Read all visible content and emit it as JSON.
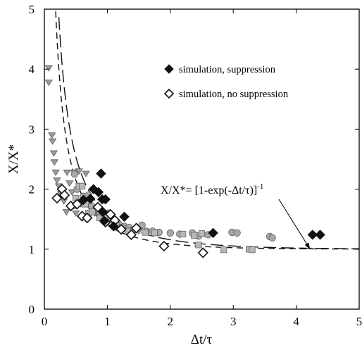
{
  "chart_data": {
    "type": "scatter",
    "title": "",
    "xlabel": "Δt/τ",
    "ylabel": "X/X*",
    "xlim": [
      0,
      5
    ],
    "ylim": [
      0,
      5
    ],
    "xticks": [
      "0",
      "1",
      "2",
      "3",
      "4",
      "5"
    ],
    "yticks": [
      "0",
      "1",
      "2",
      "3",
      "4",
      "5"
    ],
    "grid": false,
    "legend_position": "top-right",
    "series": [
      {
        "name": "simulation, suppression",
        "marker": "diamond-filled",
        "color": "#111111",
        "points": [
          [
            0.9,
            2.26
          ],
          [
            0.86,
            1.95
          ],
          [
            0.62,
            1.82
          ],
          [
            0.73,
            1.84
          ],
          [
            0.78,
            2.0
          ],
          [
            0.92,
            1.83
          ],
          [
            0.97,
            1.83
          ],
          [
            0.93,
            1.62
          ],
          [
            0.95,
            1.47
          ],
          [
            1.1,
            1.38
          ],
          [
            1.27,
            1.54
          ],
          [
            2.68,
            1.27
          ],
          [
            4.26,
            1.24
          ],
          [
            4.38,
            1.24
          ]
        ]
      },
      {
        "name": "simulation, no suppression",
        "marker": "diamond-open",
        "color": "#111111",
        "points": [
          [
            0.2,
            1.85
          ],
          [
            0.28,
            2.0
          ],
          [
            0.32,
            1.9
          ],
          [
            0.42,
            1.72
          ],
          [
            0.52,
            1.75
          ],
          [
            0.6,
            1.55
          ],
          [
            0.68,
            1.52
          ],
          [
            0.85,
            1.7
          ],
          [
            0.97,
            1.45
          ],
          [
            1.05,
            1.58
          ],
          [
            1.12,
            1.48
          ],
          [
            1.22,
            1.33
          ],
          [
            1.38,
            1.24
          ],
          [
            1.46,
            1.35
          ],
          [
            1.9,
            1.05
          ],
          [
            2.52,
            0.94
          ]
        ]
      },
      {
        "name": "",
        "marker": "triangle-down",
        "color": "#9a9a9a",
        "points": [
          [
            0.07,
            4.02
          ],
          [
            0.07,
            3.78
          ],
          [
            0.12,
            2.9
          ],
          [
            0.13,
            2.8
          ],
          [
            0.15,
            2.6
          ],
          [
            0.16,
            2.45
          ],
          [
            0.18,
            2.28
          ],
          [
            0.2,
            2.15
          ],
          [
            0.23,
            2.05
          ],
          [
            0.26,
            1.92
          ],
          [
            0.31,
            1.8
          ],
          [
            0.36,
            2.28
          ],
          [
            0.4,
            2.1
          ],
          [
            0.44,
            1.95
          ],
          [
            0.47,
            2.28
          ],
          [
            0.55,
            2.3
          ],
          [
            0.58,
            1.75
          ],
          [
            0.66,
            2.26
          ],
          [
            0.72,
            1.7
          ],
          [
            0.8,
            1.6
          ],
          [
            0.88,
            1.55
          ],
          [
            0.98,
            1.5
          ],
          [
            1.05,
            1.4
          ],
          [
            1.15,
            1.36
          ],
          [
            1.3,
            1.3
          ],
          [
            1.5,
            1.3
          ],
          [
            0.35,
            1.62
          ],
          [
            0.5,
            1.6
          ]
        ]
      },
      {
        "name": "",
        "marker": "circle",
        "color": "#a8a8a8",
        "points": [
          [
            0.48,
            2.25
          ],
          [
            0.52,
            2.0
          ],
          [
            0.62,
            1.88
          ],
          [
            0.7,
            1.9
          ],
          [
            0.75,
            1.72
          ],
          [
            0.83,
            1.67
          ],
          [
            0.9,
            1.55
          ],
          [
            1.02,
            1.6
          ],
          [
            1.08,
            1.48
          ],
          [
            1.18,
            1.42
          ],
          [
            1.27,
            1.38
          ],
          [
            1.35,
            1.36
          ],
          [
            1.45,
            1.33
          ],
          [
            1.55,
            1.4
          ],
          [
            1.62,
            1.3
          ],
          [
            1.72,
            1.3
          ],
          [
            1.82,
            1.28
          ],
          [
            2.0,
            1.27
          ],
          [
            2.15,
            1.25
          ],
          [
            2.35,
            1.27
          ],
          [
            2.45,
            1.22
          ],
          [
            2.6,
            1.24
          ],
          [
            2.98,
            1.28
          ],
          [
            3.06,
            1.27
          ],
          [
            3.58,
            1.21
          ],
          [
            3.62,
            1.19
          ]
        ]
      },
      {
        "name": "",
        "marker": "square",
        "color": "#b8b8b8",
        "points": [
          [
            0.46,
            1.72
          ],
          [
            0.5,
            1.85
          ],
          [
            0.55,
            2.05
          ],
          [
            0.6,
            2.05
          ],
          [
            0.65,
            1.75
          ],
          [
            0.7,
            1.6
          ],
          [
            0.76,
            1.62
          ],
          [
            0.88,
            1.52
          ],
          [
            0.96,
            1.52
          ],
          [
            1.03,
            1.45
          ],
          [
            1.14,
            1.4
          ],
          [
            1.24,
            1.35
          ],
          [
            1.33,
            1.3
          ],
          [
            1.42,
            1.32
          ],
          [
            1.6,
            1.28
          ],
          [
            1.75,
            1.27
          ],
          [
            2.2,
            1.25
          ],
          [
            2.38,
            1.23
          ],
          [
            2.45,
            1.07
          ],
          [
            2.5,
            1.26
          ],
          [
            2.85,
            0.99
          ],
          [
            3.25,
            1.0
          ],
          [
            3.3,
            0.99
          ]
        ]
      }
    ],
    "curves": [
      {
        "name": "X/X*= [1-exp(-Δt/τ)]",
        "exponent": "-1",
        "style": "long-dash",
        "equation": "1/(1-exp(-x))"
      },
      {
        "name": "",
        "style": "short-dash",
        "equation": "1/(1-exp(-1.25*x))"
      }
    ],
    "annotations": [
      {
        "text": "X/X*= [1-exp(-Δt/τ)]",
        "superscript": "-1",
        "arrow_to": [
          4.22,
          1.0
        ]
      }
    ]
  }
}
